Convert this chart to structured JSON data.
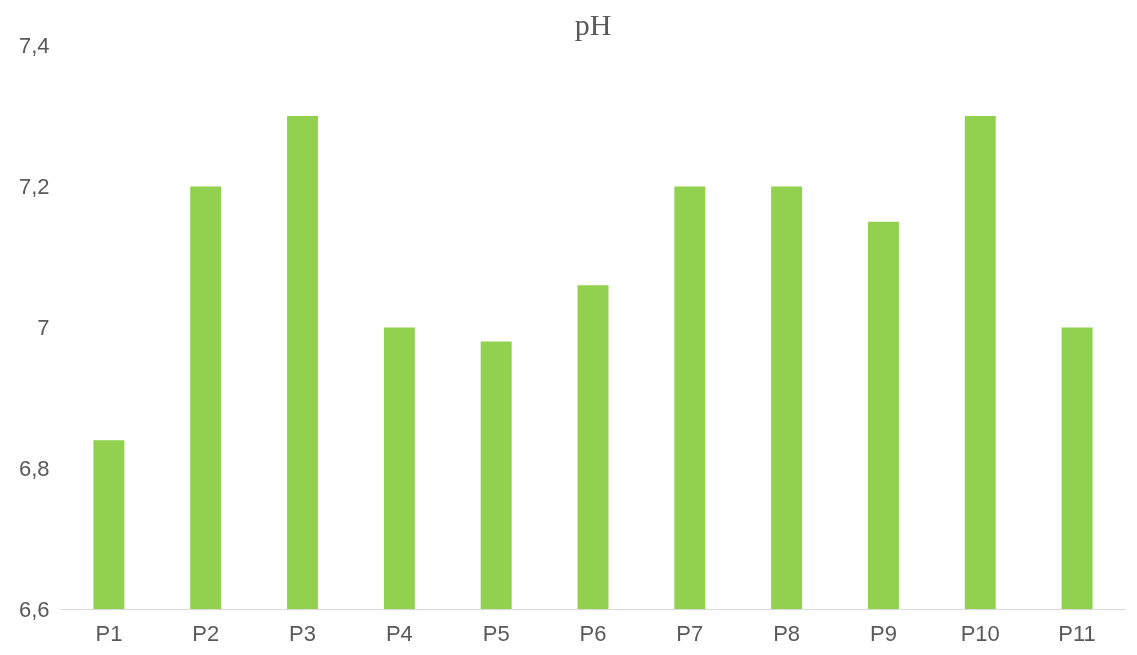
{
  "chart_data": {
    "type": "bar",
    "title": "pH",
    "categories": [
      "P1",
      "P2",
      "P3",
      "P4",
      "P5",
      "P6",
      "P7",
      "P8",
      "P9",
      "P10",
      "P11"
    ],
    "values": [
      6.84,
      7.2,
      7.3,
      7.0,
      6.98,
      7.06,
      7.2,
      7.2,
      7.15,
      7.3,
      7.0
    ],
    "color": "#92d050",
    "ylim": [
      6.6,
      7.4
    ],
    "yticks": [
      {
        "value": 6.6,
        "label": "6,6"
      },
      {
        "value": 6.8,
        "label": "6,8"
      },
      {
        "value": 7,
        "label": "7"
      },
      {
        "value": 7.2,
        "label": "7,2"
      },
      {
        "value": 7.4,
        "label": "7,4"
      }
    ],
    "grid": false
  }
}
